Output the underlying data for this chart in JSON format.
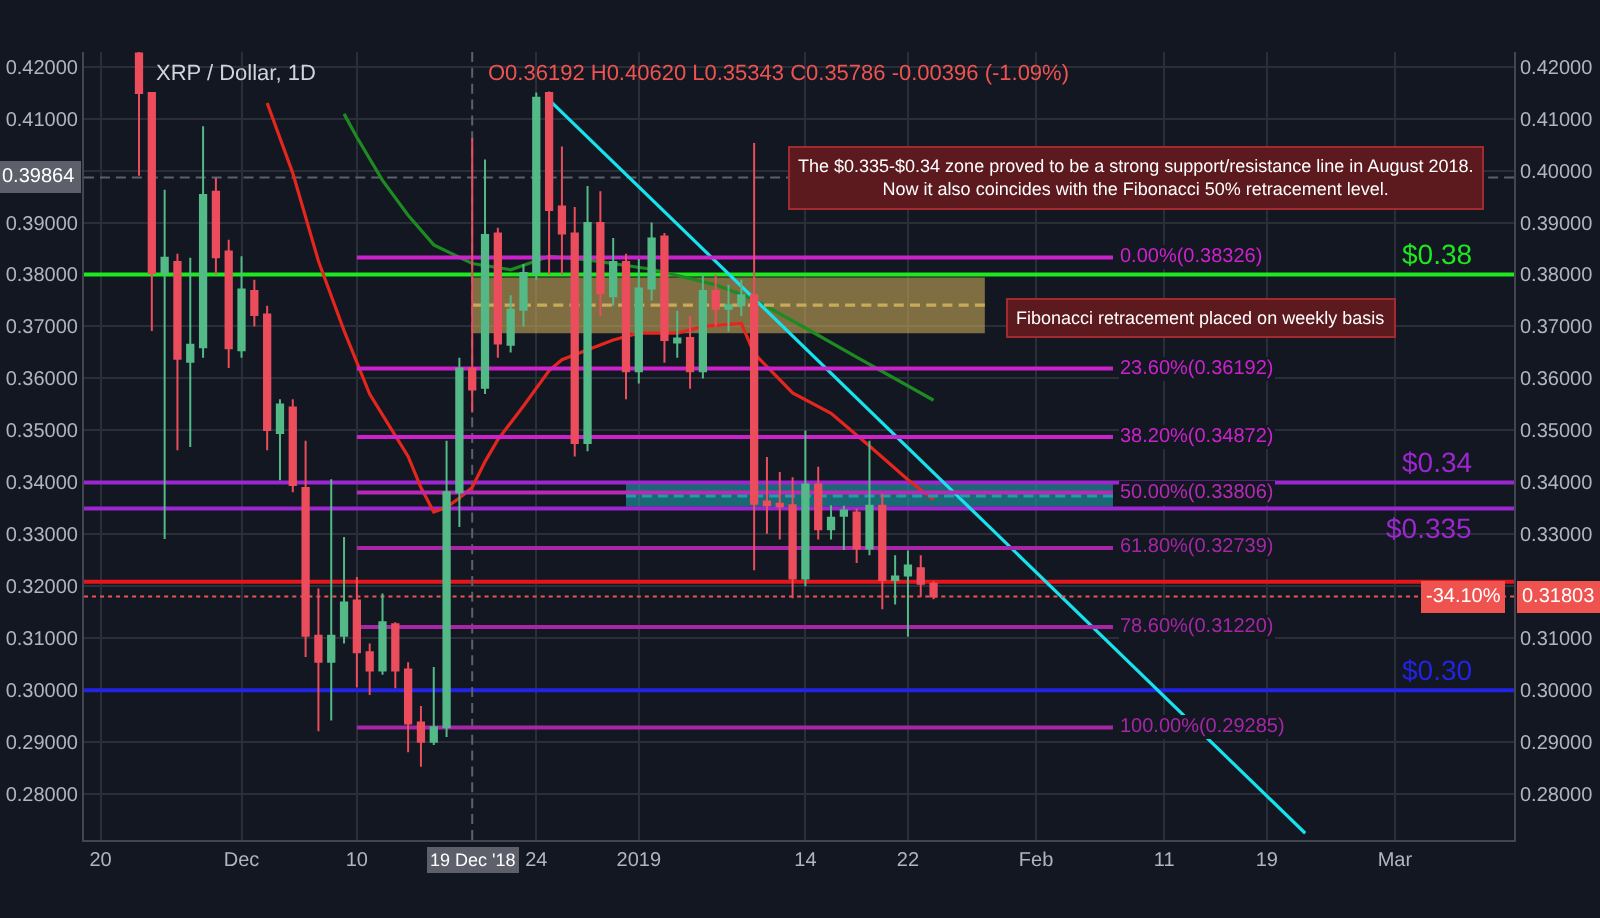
{
  "chart_data": {
    "type": "candlestick",
    "title": "XRP / Dollar, 1D",
    "subtitle": "O0.36192 H0.40620 L0.35343 C0.35786 -0.00396 (-1.09%)",
    "annotations": [
      "The $0.335-$0.34 zone proved to be a strong support/resistance line in August 2018.\nNow it also coincides with the Fibonacci 50% retracement level.",
      "Fibonacci retracement placed on weekly basis",
      {
        "text": "-34.10%",
        "x": "2019-03-06T06:00",
        "y": 0.31803
      }
    ],
    "x": [
      "2018-11-23",
      "2018-11-24",
      "2018-11-25",
      "2018-11-26",
      "2018-11-27",
      "2018-11-28",
      "2018-11-29",
      "2018-11-30",
      "2018-12-01",
      "2018-12-02",
      "2018-12-03",
      "2018-12-04",
      "2018-12-05",
      "2018-12-06",
      "2018-12-07",
      "2018-12-08",
      "2018-12-09",
      "2018-12-10",
      "2018-12-11",
      "2018-12-12",
      "2018-12-13",
      "2018-12-14",
      "2018-12-15",
      "2018-12-16",
      "2018-12-17",
      "2018-12-18",
      "2018-12-19",
      "2018-12-20",
      "2018-12-21",
      "2018-12-22",
      "2018-12-23",
      "2018-12-24",
      "2018-12-25",
      "2018-12-26",
      "2018-12-27",
      "2018-12-28",
      "2018-12-29",
      "2018-12-30",
      "2018-12-31",
      "2019-01-01",
      "2019-01-02",
      "2019-01-03",
      "2019-01-04",
      "2019-01-05",
      "2019-01-06",
      "2019-01-07",
      "2019-01-08",
      "2019-01-09",
      "2019-01-10",
      "2019-01-11",
      "2019-01-12",
      "2019-01-13",
      "2019-01-14",
      "2019-01-15",
      "2019-01-16",
      "2019-01-17",
      "2019-01-18",
      "2019-01-19",
      "2019-01-20",
      "2019-01-21",
      "2019-01-22",
      "2019-01-23",
      "2019-01-24"
    ],
    "ohlc": [
      [
        0.4225,
        0.4228,
        0.399,
        0.4149
      ],
      [
        0.4149,
        0.4149,
        0.3691,
        0.3803
      ],
      [
        0.3803,
        0.3963,
        0.3291,
        0.3832
      ],
      [
        0.3824,
        0.384,
        0.3462,
        0.3638
      ],
      [
        0.3632,
        0.3832,
        0.3468,
        0.3665
      ],
      [
        0.366,
        0.4085,
        0.364,
        0.3953
      ],
      [
        0.3959,
        0.3986,
        0.38,
        0.3833
      ],
      [
        0.3844,
        0.3867,
        0.362,
        0.3658
      ],
      [
        0.3654,
        0.3835,
        0.364,
        0.3771
      ],
      [
        0.3768,
        0.379,
        0.37,
        0.3722
      ],
      [
        0.3723,
        0.374,
        0.3462,
        0.3501
      ],
      [
        0.3495,
        0.356,
        0.3404,
        0.355
      ],
      [
        0.3544,
        0.356,
        0.3381,
        0.3395
      ],
      [
        0.3389,
        0.348,
        0.3064,
        0.3105
      ],
      [
        0.3105,
        0.3196,
        0.2921,
        0.3055
      ],
      [
        0.3055,
        0.3406,
        0.2942,
        0.3105
      ],
      [
        0.3105,
        0.3295,
        0.309,
        0.3169
      ],
      [
        0.3173,
        0.3218,
        0.3006,
        0.3073
      ],
      [
        0.3073,
        0.309,
        0.2991,
        0.3038
      ],
      [
        0.3038,
        0.3186,
        0.303,
        0.3131
      ],
      [
        0.3127,
        0.3131,
        0.3004,
        0.3038
      ],
      [
        0.304,
        0.3054,
        0.2881,
        0.2936
      ],
      [
        0.2938,
        0.297,
        0.2853,
        0.2901
      ],
      [
        0.2901,
        0.3045,
        0.2895,
        0.2929
      ],
      [
        0.2929,
        0.348,
        0.291,
        0.3381
      ],
      [
        0.3381,
        0.364,
        0.3314,
        0.3619
      ],
      [
        0.36192,
        0.4062,
        0.35343,
        0.35786
      ],
      [
        0.3582,
        0.4021,
        0.357,
        0.3876
      ],
      [
        0.3879,
        0.389,
        0.364,
        0.3667
      ],
      [
        0.3665,
        0.376,
        0.365,
        0.3732
      ],
      [
        0.3732,
        0.382,
        0.37,
        0.3803
      ],
      [
        0.3803,
        0.415,
        0.379,
        0.414
      ],
      [
        0.4149,
        0.4152,
        0.38,
        0.3924
      ],
      [
        0.3931,
        0.4046,
        0.38,
        0.3879
      ],
      [
        0.3879,
        0.393,
        0.345,
        0.3476
      ],
      [
        0.3476,
        0.397,
        0.346,
        0.3899
      ],
      [
        0.3899,
        0.396,
        0.372,
        0.3764
      ],
      [
        0.3758,
        0.387,
        0.374,
        0.3824
      ],
      [
        0.3824,
        0.384,
        0.356,
        0.3614
      ],
      [
        0.3614,
        0.383,
        0.359,
        0.3773
      ],
      [
        0.3773,
        0.39,
        0.375,
        0.3869
      ],
      [
        0.3873,
        0.388,
        0.363,
        0.3674
      ],
      [
        0.3669,
        0.373,
        0.364,
        0.3677
      ],
      [
        0.3678,
        0.372,
        0.358,
        0.3614
      ],
      [
        0.3614,
        0.38,
        0.36,
        0.3768
      ],
      [
        0.3768,
        0.38,
        0.37,
        0.3734
      ],
      [
        0.3734,
        0.378,
        0.369,
        0.3741
      ],
      [
        0.3741,
        0.379,
        0.372,
        0.376
      ],
      [
        0.376,
        0.4053,
        0.3231,
        0.3359
      ],
      [
        0.3363,
        0.3449,
        0.3301,
        0.3356
      ],
      [
        0.3359,
        0.342,
        0.329,
        0.3354
      ],
      [
        0.3356,
        0.341,
        0.3177,
        0.3215
      ],
      [
        0.3215,
        0.35,
        0.32,
        0.3396
      ],
      [
        0.3396,
        0.343,
        0.329,
        0.331
      ],
      [
        0.331,
        0.3356,
        0.329,
        0.3332
      ],
      [
        0.3336,
        0.3355,
        0.327,
        0.3346
      ],
      [
        0.3342,
        0.335,
        0.3245,
        0.3273
      ],
      [
        0.3273,
        0.348,
        0.326,
        0.3355
      ],
      [
        0.3355,
        0.3378,
        0.3156,
        0.3212
      ],
      [
        0.3212,
        0.326,
        0.3165,
        0.3219
      ],
      [
        0.3221,
        0.3269,
        0.3103,
        0.324
      ],
      [
        0.3235,
        0.326,
        0.318,
        0.3205
      ],
      [
        0.3205,
        0.321,
        0.3175,
        0.31803
      ]
    ],
    "colors": [
      "#eb4d5c",
      "#eb4d5c",
      "#53b987",
      "#eb4d5c",
      "#53b987",
      "#53b987",
      "#eb4d5c",
      "#eb4d5c",
      "#53b987",
      "#eb4d5c",
      "#eb4d5c",
      "#53b987",
      "#eb4d5c",
      "#eb4d5c",
      "#eb4d5c",
      "#53b987",
      "#53b987",
      "#eb4d5c",
      "#eb4d5c",
      "#53b987",
      "#eb4d5c",
      "#eb4d5c",
      "#eb4d5c",
      "#53b987",
      "#53b987",
      "#53b987",
      "#eb4d5c",
      "#53b987",
      "#eb4d5c",
      "#53b987",
      "#53b987",
      "#53b987",
      "#eb4d5c",
      "#eb4d5c",
      "#eb4d5c",
      "#53b987",
      "#eb4d5c",
      "#53b987",
      "#eb4d5c",
      "#53b987",
      "#53b987",
      "#eb4d5c",
      "#53b987",
      "#eb4d5c",
      "#53b987",
      "#eb4d5c",
      "#53b987",
      "#53b987",
      "#eb4d5c",
      "#eb4d5c",
      "#eb4d5c",
      "#eb4d5c",
      "#53b987",
      "#eb4d5c",
      "#53b987",
      "#53b987",
      "#eb4d5c",
      "#53b987",
      "#eb4d5c",
      "#53b987",
      "#53b987",
      "#eb4d5c",
      "#eb4d5c"
    ],
    "series": [
      {
        "type": "line",
        "color": "#e5261e",
        "x": [
          "2018-12-03",
          "2018-12-05",
          "2018-12-07",
          "2018-12-09",
          "2018-12-11",
          "2018-12-13",
          "2018-12-14",
          "2018-12-15",
          "2018-12-16",
          "2018-12-17",
          "2018-12-18",
          "2018-12-19",
          "2018-12-20",
          "2018-12-21",
          "2018-12-23",
          "2018-12-25",
          "2018-12-26",
          "2018-12-30",
          "2019-01-01",
          "2019-01-04",
          "2019-01-06",
          "2019-01-09",
          "2019-01-10",
          "2019-01-13",
          "2019-01-16",
          "2019-01-19",
          "2019-01-22",
          "2019-01-24"
        ],
        "values": [
          0.413,
          0.3995,
          0.3826,
          0.3692,
          0.357,
          0.349,
          0.345,
          0.339,
          0.3343,
          0.3352,
          0.337,
          0.339,
          0.344,
          0.3482,
          0.3547,
          0.3615,
          0.3636,
          0.3674,
          0.3687,
          0.3687,
          0.37,
          0.3706,
          0.3648,
          0.3572,
          0.3533,
          0.347,
          0.3405,
          0.3367
        ]
      },
      {
        "type": "line",
        "color": "#1e8a22",
        "x": [
          "2018-12-09",
          "2018-12-10",
          "2018-12-12",
          "2018-12-14",
          "2018-12-16",
          "2018-12-19",
          "2018-12-22",
          "2018-12-25",
          "2018-12-28",
          "2019-01-02",
          "2019-01-07",
          "2019-01-10",
          "2019-01-14",
          "2019-01-18",
          "2019-01-24"
        ],
        "values": [
          0.4109,
          0.4064,
          0.3981,
          0.3914,
          0.3857,
          0.3821,
          0.3809,
          0.3835,
          0.3828,
          0.381,
          0.378,
          0.3752,
          0.3697,
          0.3641,
          0.3558
        ]
      },
      {
        "type": "line",
        "color": "#17e3ef",
        "x": [
          "2018-12-25",
          "2019-02-22"
        ],
        "values": [
          0.4136,
          0.2725
        ]
      },
      {
        "type": "line",
        "color": "#c9a95a",
        "line_style": "dashed",
        "x": [
          "2018-12-19",
          "2019-01-28"
        ],
        "values": [
          0.3741,
          0.3741
        ],
        "lower": [
          0.3687,
          0.3687
        ],
        "upper": [
          0.3794,
          0.3794
        ]
      },
      {
        "type": "line",
        "color": "#1e9fac",
        "line_style": "dashed",
        "x": [
          "2018-12-31",
          "2019-02-07"
        ],
        "values": [
          0.3374,
          0.3374
        ],
        "lower": [
          0.3353,
          0.3353
        ],
        "upper": [
          0.3397,
          0.3397
        ]
      },
      {
        "type": "line",
        "name": "0.00%(0.38326)",
        "color": "#cc22cc",
        "x": [
          "2018-12-10",
          "2019-02-07"
        ],
        "values": [
          0.38326,
          0.38326
        ]
      },
      {
        "type": "line",
        "name": "23.60%(0.36192)",
        "color": "#cc22cc",
        "x": [
          "2018-12-10",
          "2019-02-07"
        ],
        "values": [
          0.36192,
          0.36192
        ]
      },
      {
        "type": "line",
        "name": "38.20%(0.34872)",
        "color": "#cc22cc",
        "x": [
          "2018-12-10",
          "2019-02-07"
        ],
        "values": [
          0.34872,
          0.34872
        ]
      },
      {
        "type": "line",
        "name": "50.00%(0.33806)",
        "color": "#b62ab6",
        "x": [
          "2018-12-10",
          "2019-02-07"
        ],
        "values": [
          0.33806,
          0.33806
        ]
      },
      {
        "type": "line",
        "name": "61.80%(0.32739)",
        "color": "#a626a6",
        "x": [
          "2018-12-10",
          "2019-02-07"
        ],
        "values": [
          0.32739,
          0.32739
        ]
      },
      {
        "type": "line",
        "name": "78.60%(0.31220)",
        "color": "#a626a6",
        "x": [
          "2018-12-10",
          "2019-02-07"
        ],
        "values": [
          0.3122,
          0.3122
        ]
      },
      {
        "type": "line",
        "name": "100.00%(0.29285)",
        "color": "#a626a6",
        "x": [
          "2018-12-10",
          "2019-02-07"
        ],
        "values": [
          0.29285,
          0.29285
        ]
      }
    ],
    "ref_lines": [
      {
        "axis": "y",
        "value": 0.38,
        "label": "$0.38",
        "color": "#1ee81e"
      },
      {
        "axis": "y",
        "value": 0.34,
        "label": "$0.34",
        "color": "#9c27d0"
      },
      {
        "axis": "y",
        "value": 0.335,
        "label": "$0.335",
        "color": "#9c27d0"
      },
      {
        "axis": "y",
        "value": 0.3,
        "label": "$0.30",
        "color": "#2323e6"
      },
      {
        "axis": "y",
        "value": 0.3209,
        "color": "#e5161b"
      },
      {
        "axis": "y",
        "value": 0.39864,
        "label": "0.39864",
        "color": "#5d606b",
        "line_style": "dashed"
      },
      {
        "axis": "y2",
        "value": 0.31803,
        "label": "0.31803",
        "color": "#ef5350",
        "line_style": "dotted"
      },
      {
        "axis": "x",
        "value": "2018-12-19",
        "label": "19 Dec '18",
        "color": "#5d606b",
        "line_style": "dashed"
      }
    ],
    "xlim": [
      "2018-11-18T17:00",
      "2019-03-10T07:00"
    ],
    "xticks": [
      {
        "value": "2018-11-20",
        "label": "20"
      },
      {
        "value": "2018-12-01",
        "label": "Dec"
      },
      {
        "value": "2018-12-10",
        "label": "10"
      },
      {
        "value": "2018-12-24",
        "label": "24"
      },
      {
        "value": "2019-01-01",
        "label": "2019"
      },
      {
        "value": "2019-01-14",
        "label": "14"
      },
      {
        "value": "2019-01-22",
        "label": "22"
      },
      {
        "value": "2019-02-01",
        "label": "Feb"
      },
      {
        "value": "2019-02-11",
        "label": "11"
      },
      {
        "value": "2019-02-19",
        "label": "19"
      },
      {
        "value": "2019-03-01",
        "label": "Mar"
      }
    ],
    "ylim": [
      0.2712,
      0.4228
    ],
    "yticks": [
      {
        "value": 0.28,
        "label": "0.28000"
      },
      {
        "value": 0.29,
        "label": "0.29000"
      },
      {
        "value": 0.3,
        "label": "0.30000"
      },
      {
        "value": 0.31,
        "label": "0.31000"
      },
      {
        "value": 0.32,
        "label": "0.32000"
      },
      {
        "value": 0.33,
        "label": "0.33000"
      },
      {
        "value": 0.34,
        "label": "0.34000"
      },
      {
        "value": 0.35,
        "label": "0.35000"
      },
      {
        "value": 0.36,
        "label": "0.36000"
      },
      {
        "value": 0.37,
        "label": "0.37000"
      },
      {
        "value": 0.38,
        "label": "0.38000"
      },
      {
        "value": 0.39,
        "label": "0.39000"
      },
      {
        "value": 0.4,
        "label": null
      },
      {
        "value": 0.41,
        "label": "0.41000"
      },
      {
        "value": 0.42,
        "label": "0.42000"
      }
    ],
    "y2lim": [
      0.2712,
      0.4228
    ],
    "y2ticks": [
      {
        "value": 0.28,
        "label": "0.28000"
      },
      {
        "value": 0.29,
        "label": "0.29000"
      },
      {
        "value": 0.3,
        "label": "0.30000"
      },
      {
        "value": 0.31,
        "label": "0.31000"
      },
      {
        "value": 0.32,
        "label": null
      },
      {
        "value": 0.33,
        "label": "0.33000"
      },
      {
        "value": 0.34,
        "label": "0.34000"
      },
      {
        "value": 0.35,
        "label": "0.35000"
      },
      {
        "value": 0.36,
        "label": "0.36000"
      },
      {
        "value": 0.37,
        "label": "0.37000"
      },
      {
        "value": 0.38,
        "label": "0.38000"
      },
      {
        "value": 0.39,
        "label": "0.39000"
      },
      {
        "value": 0.4,
        "label": "0.40000"
      },
      {
        "value": 0.41,
        "label": "0.41000"
      },
      {
        "value": 0.42,
        "label": "0.42000"
      }
    ],
    "grid": true
  }
}
